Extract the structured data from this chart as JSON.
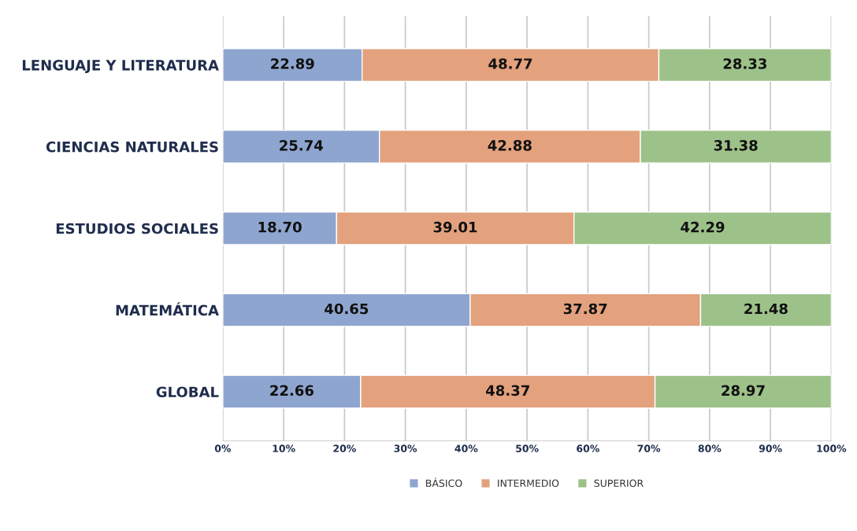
{
  "chart_data": {
    "type": "bar",
    "orientation": "horizontal",
    "stacked": true,
    "categories": [
      "LENGUAJE Y LITERATURA",
      "CIENCIAS NATURALES",
      "ESTUDIOS SOCIALES",
      "MATEMÁTICA",
      "GLOBAL"
    ],
    "series": [
      {
        "name": "BÁSICO",
        "color": "#8ea5cf",
        "values": [
          22.89,
          25.74,
          18.7,
          40.65,
          22.66
        ],
        "value_labels": [
          "22.89",
          "25.74",
          "18.70",
          "40.65",
          "22.66"
        ]
      },
      {
        "name": "INTERMEDIO",
        "color": "#e3a17d",
        "values": [
          48.77,
          42.88,
          39.01,
          37.87,
          48.37
        ],
        "value_labels": [
          "48.77",
          "42.88",
          "39.01",
          "37.87",
          "48.37"
        ]
      },
      {
        "name": "SUPERIOR",
        "color": "#9dc289",
        "values": [
          28.33,
          31.38,
          42.29,
          21.48,
          28.97
        ],
        "value_labels": [
          "28.33",
          "31.38",
          "42.29",
          "21.48",
          "28.97"
        ]
      }
    ],
    "xlim": [
      0,
      100
    ],
    "xticks": [
      {
        "value": 0,
        "label": "0%"
      },
      {
        "value": 10,
        "label": "10%"
      },
      {
        "value": 20,
        "label": "20%"
      },
      {
        "value": 30,
        "label": "30%"
      },
      {
        "value": 40,
        "label": "40%"
      },
      {
        "value": 50,
        "label": "50%"
      },
      {
        "value": 60,
        "label": "60%"
      },
      {
        "value": 70,
        "label": "70%"
      },
      {
        "value": 80,
        "label": "80%"
      },
      {
        "value": 90,
        "label": "90%"
      },
      {
        "value": 100,
        "label": "100%"
      }
    ],
    "grid": "x",
    "legend": "bottom"
  }
}
